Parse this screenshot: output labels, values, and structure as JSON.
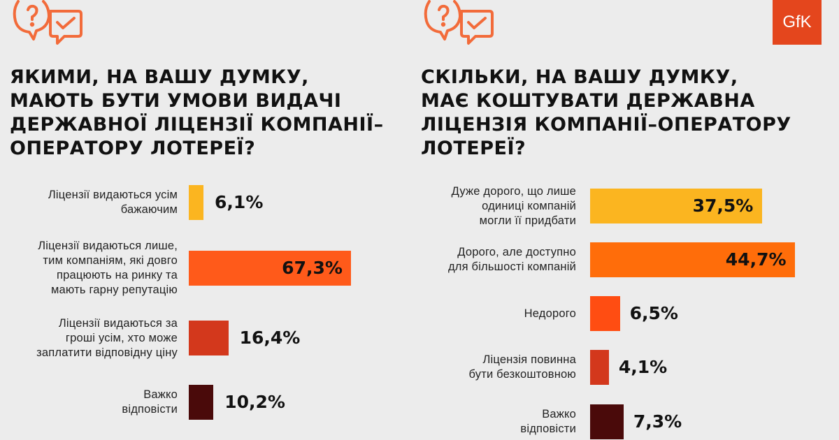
{
  "logo": "GfK",
  "colors": {
    "orange": "#ff5a1a",
    "yellow": "#fbb520",
    "red": "#d3381c",
    "dark": "#4a0a0a",
    "icon": "#f26b3a"
  },
  "chart_data": [
    {
      "type": "bar",
      "orientation": "horizontal",
      "title_lines": [
        "ЯКИМИ, НА ВАШУ ДУМКУ,",
        "МАЮТЬ БУТИ УМОВИ ВИДАЧІ",
        "ДЕРЖАВНОЇ ЛІЦЕНЗІЇ КОМПАНІЇ–",
        "ОПЕРАТОРУ ЛОТЕРЕЇ?"
      ],
      "unit": "%",
      "categories": [
        [
          "Ліцензії видаються усім",
          "бажаючим"
        ],
        [
          "Ліцензії видаються лише,",
          "тим компаніям, які довго",
          "працюють на ринку та",
          "мають гарну репутацію"
        ],
        [
          "Ліцензії видаються за",
          "гроші усім, хто може",
          "заплатити відповідну ціну"
        ],
        [
          "Важко",
          "відповісти"
        ]
      ],
      "values": [
        6.1,
        67.3,
        16.4,
        10.2
      ],
      "value_labels": [
        "6,1%",
        "67,3%",
        "16,4%",
        "10,2%"
      ],
      "bar_colors": [
        "#fbb520",
        "#ff5a1a",
        "#d3381c",
        "#4a0a0a"
      ]
    },
    {
      "type": "bar",
      "orientation": "horizontal",
      "title_lines": [
        "СКІЛЬКИ, НА ВАШУ ДУМКУ,",
        "МАЄ КОШТУВАТИ ДЕРЖАВНА",
        "ЛІЦЕНЗІЯ КОМПАНІЇ–ОПЕРАТОРУ",
        "ЛОТЕРЕЇ?"
      ],
      "unit": "%",
      "categories": [
        [
          "Дуже дорого, що лише",
          "одиниці компаній",
          "могли її придбати"
        ],
        [
          "Дорого, але доступно",
          "для більшості компаній"
        ],
        [
          "Недорого"
        ],
        [
          "Ліцензія повинна",
          "бути безкоштовною"
        ],
        [
          "Важко",
          "відповісти"
        ]
      ],
      "values": [
        37.5,
        44.7,
        6.5,
        4.1,
        7.3
      ],
      "value_labels": [
        "37,5%",
        "44,7%",
        "6,5%",
        "4,1%",
        "7,3%"
      ],
      "bar_colors": [
        "#fbb520",
        "#ff6d0a",
        "#ff4d12",
        "#d3381c",
        "#4a0a0a"
      ]
    }
  ]
}
